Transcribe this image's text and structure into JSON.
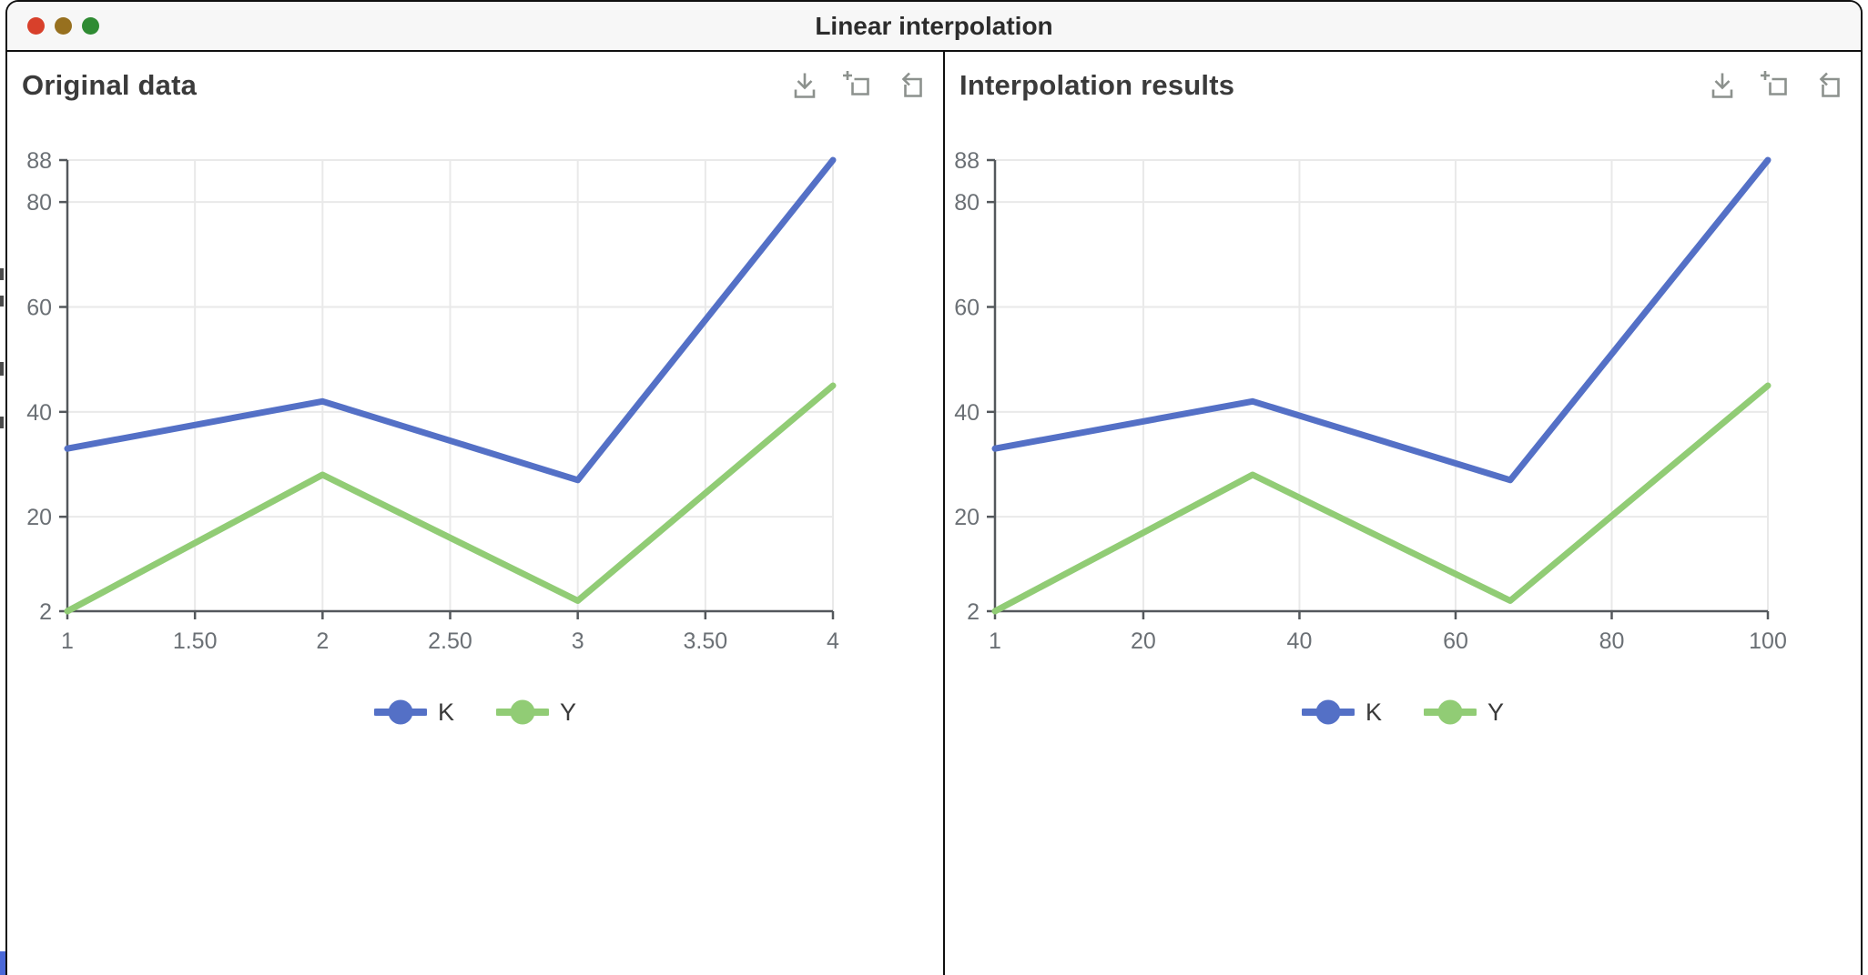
{
  "window": {
    "title": "Linear interpolation",
    "traffic_lights": {
      "close_color": "#d8402b",
      "minimize_color": "#97701f",
      "zoom_color": "#2f8b33"
    },
    "titlebar_bg": "#f7f7f7",
    "frame_color": "#101010"
  },
  "panels": [
    {
      "title": "Original data",
      "toolbar": [
        "save-image-icon",
        "zoom-select-icon",
        "restore-icon"
      ]
    },
    {
      "title": "Interpolation results",
      "toolbar": [
        "save-image-icon",
        "zoom-select-icon",
        "restore-icon"
      ]
    }
  ],
  "colors": {
    "series_k": "#5470c6",
    "series_y": "#91cc75",
    "axis_line": "#54585c",
    "axis_label": "#6b7075",
    "gridline": "#e9e9e9"
  },
  "chart_data": [
    {
      "type": "line",
      "title": "Original data",
      "xlabel": "",
      "ylabel": "",
      "xlim": [
        1,
        4
      ],
      "ylim": [
        2,
        88
      ],
      "x_ticks": [
        1,
        1.5,
        2,
        2.5,
        3,
        3.5,
        4
      ],
      "x_tick_labels": [
        "1",
        "1.50",
        "2",
        "2.50",
        "3",
        "3.50",
        "4"
      ],
      "y_ticks": [
        2,
        20,
        40,
        60,
        80,
        88
      ],
      "y_tick_labels": [
        "2",
        "20",
        "40",
        "60",
        "80",
        "88"
      ],
      "grid": true,
      "legend_position": "bottom",
      "legend": [
        "K",
        "Y"
      ],
      "series": [
        {
          "name": "K",
          "color": "#5470c6",
          "points": [
            [
              1,
              33
            ],
            [
              2,
              42
            ],
            [
              3,
              27
            ],
            [
              4,
              88
            ]
          ]
        },
        {
          "name": "Y",
          "color": "#91cc75",
          "points": [
            [
              1,
              2
            ],
            [
              2,
              28
            ],
            [
              3,
              4
            ],
            [
              4,
              45
            ]
          ]
        }
      ]
    },
    {
      "type": "line",
      "title": "Interpolation results",
      "xlabel": "",
      "ylabel": "",
      "xlim": [
        1,
        100
      ],
      "ylim": [
        2,
        88
      ],
      "x_ticks": [
        1,
        20,
        40,
        60,
        80,
        100
      ],
      "x_tick_labels": [
        "1",
        "20",
        "40",
        "60",
        "80",
        "100"
      ],
      "y_ticks": [
        2,
        20,
        40,
        60,
        80,
        88
      ],
      "y_tick_labels": [
        "2",
        "20",
        "40",
        "60",
        "80",
        "88"
      ],
      "grid": true,
      "legend_position": "bottom",
      "legend": [
        "K",
        "Y"
      ],
      "series": [
        {
          "name": "K",
          "color": "#5470c6",
          "points": [
            [
              1,
              33
            ],
            [
              34,
              42
            ],
            [
              67,
              27
            ],
            [
              100,
              88
            ]
          ]
        },
        {
          "name": "Y",
          "color": "#91cc75",
          "points": [
            [
              1,
              2
            ],
            [
              34,
              28
            ],
            [
              67,
              4
            ],
            [
              100,
              45
            ]
          ]
        }
      ]
    }
  ]
}
